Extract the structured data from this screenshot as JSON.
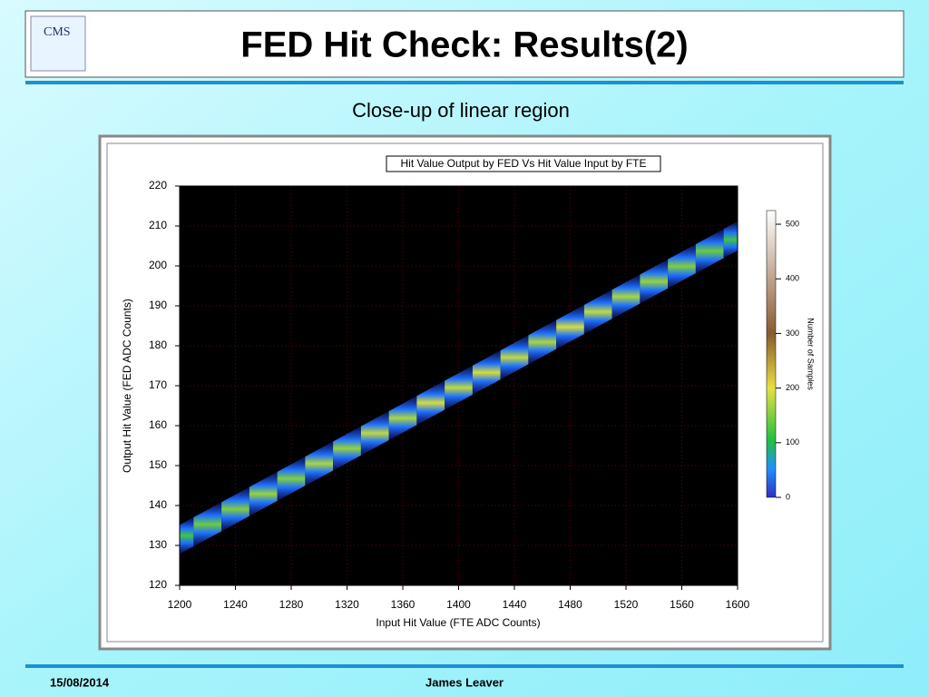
{
  "header": {
    "title": "FED Hit Check: Results(2)",
    "subtitle": "Close-up of linear region"
  },
  "chart_data": {
    "type": "heatmap-ridge",
    "title": "Hit Value Output by FED Vs Hit Value Input by FTE",
    "xlabel": "Input Hit Value (FTE ADC Counts)",
    "ylabel": "Output Hit Value (FED ADC Counts)",
    "x": [
      1200,
      1220,
      1240,
      1260,
      1280,
      1300,
      1320,
      1340,
      1360,
      1380,
      1400,
      1420,
      1440,
      1460,
      1480,
      1500,
      1520,
      1540,
      1560,
      1580,
      1600
    ],
    "y": [
      131.5,
      135.3,
      139.1,
      142.9,
      146.7,
      150.5,
      154.3,
      158.1,
      161.9,
      165.7,
      169.5,
      173.3,
      177.1,
      180.9,
      184.7,
      188.5,
      192.3,
      196.1,
      199.9,
      203.7,
      207.5
    ],
    "counts": [
      120,
      140,
      150,
      160,
      150,
      170,
      160,
      180,
      170,
      190,
      180,
      190,
      180,
      170,
      190,
      180,
      170,
      160,
      150,
      140,
      120
    ],
    "xlim": [
      1200,
      1600
    ],
    "xticks": [
      1200,
      1240,
      1280,
      1320,
      1360,
      1400,
      1440,
      1480,
      1520,
      1560,
      1600
    ],
    "ylim": [
      120,
      220
    ],
    "yticks": [
      120,
      130,
      140,
      150,
      160,
      170,
      180,
      190,
      200,
      210,
      220
    ],
    "grid": true,
    "colorbar": {
      "label": "Number of Samples",
      "zlim": [
        0,
        525
      ],
      "ticks": [
        0,
        100,
        200,
        300,
        400,
        500
      ]
    }
  },
  "footer": {
    "date": "15/08/2014",
    "author": "James Leaver"
  }
}
